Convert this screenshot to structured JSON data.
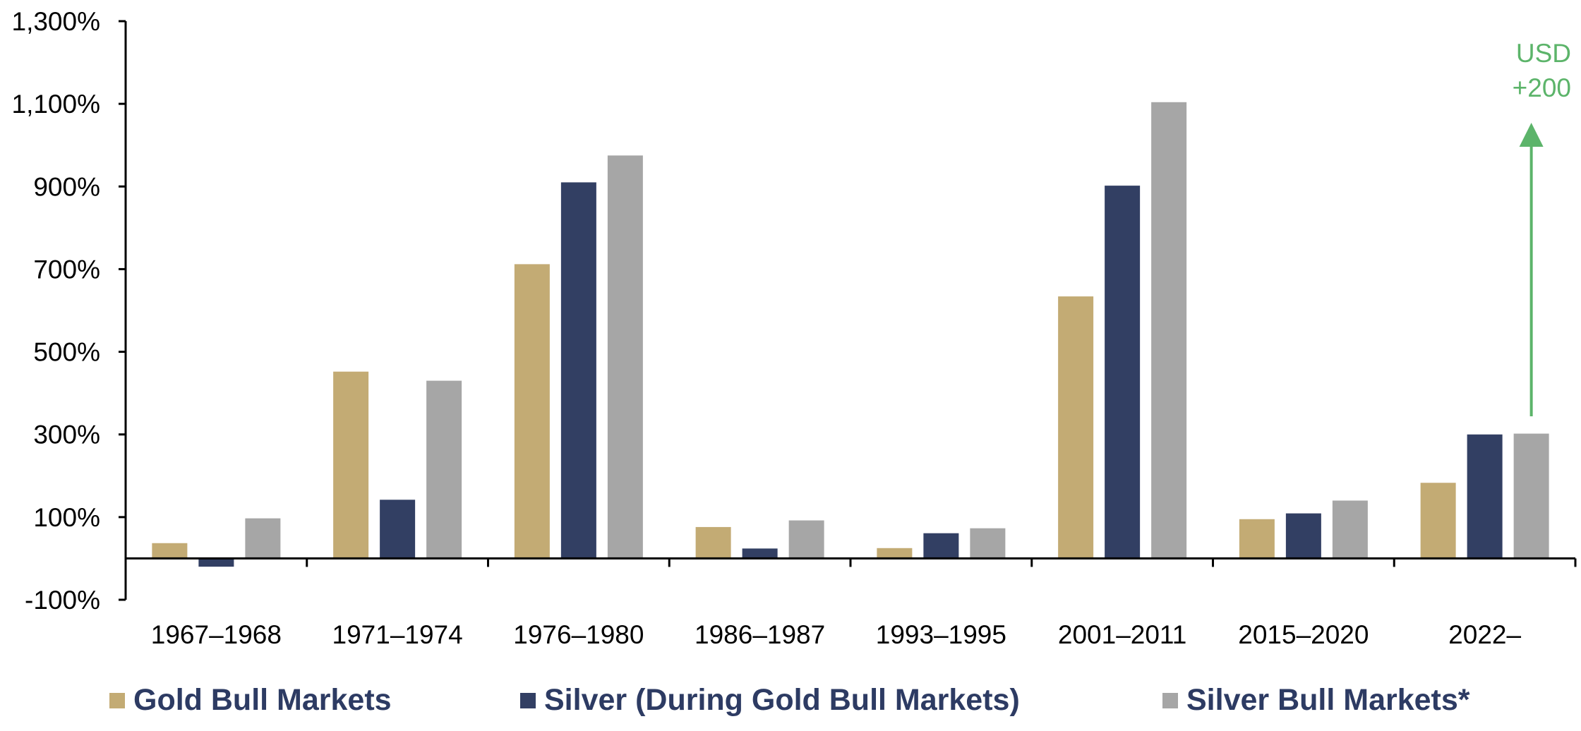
{
  "chart_data": {
    "type": "bar",
    "categories": [
      "1967–1968",
      "1971–1974",
      "1976–1980",
      "1986–1987",
      "1993–1995",
      "2001–2011",
      "2015–2020",
      "2022–"
    ],
    "series": [
      {
        "name": "Gold Bull Markets",
        "color": "#c3ab74",
        "values": [
          37,
          452,
          712,
          76,
          25,
          634,
          95,
          183
        ]
      },
      {
        "name": "Silver (During Gold Bull Markets)",
        "color": "#323f63",
        "values": [
          -20,
          142,
          910,
          24,
          61,
          902,
          109,
          300
        ]
      },
      {
        "name": "Silver Bull Markets*",
        "color": "#a6a6a6",
        "values": [
          97,
          430,
          975,
          92,
          73,
          1104,
          140,
          302
        ]
      }
    ],
    "ylim": [
      -100,
      1300
    ],
    "yticks": [
      -100,
      100,
      300,
      500,
      700,
      900,
      1100,
      1300
    ],
    "ytick_labels": [
      "-100%",
      "100%",
      "300%",
      "500%",
      "700%",
      "900%",
      "1,100%",
      "1,300%"
    ],
    "xlabel": "",
    "ylabel": "",
    "title": "",
    "grid": false,
    "legend_position": "bottom",
    "annotation": {
      "lines": [
        "USD",
        "+200"
      ],
      "color": "#5cb46a",
      "category": "2022–"
    }
  }
}
